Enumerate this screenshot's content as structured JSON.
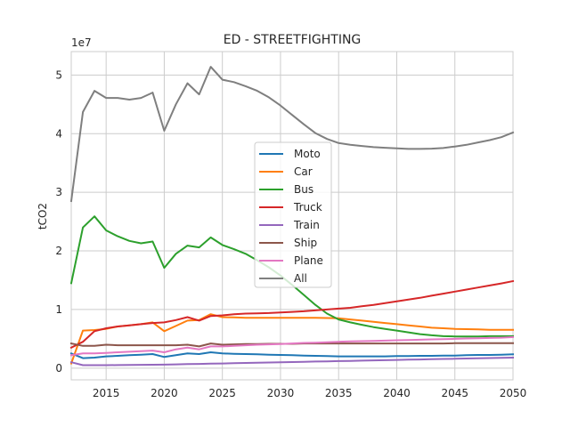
{
  "chart_data": {
    "type": "line",
    "title": "ED - STREETFIGHTING",
    "xlabel": "",
    "ylabel": "tCO2",
    "y_offset_text": "1e7",
    "xlim": [
      2012,
      2050
    ],
    "ylim": [
      -2000000,
      54000000
    ],
    "x_ticks": [
      2015,
      2020,
      2025,
      2030,
      2035,
      2040,
      2045,
      2050
    ],
    "y_ticks": [
      0,
      10000000,
      20000000,
      30000000,
      40000000,
      50000000
    ],
    "y_tick_labels": [
      "0",
      "1",
      "2",
      "3",
      "4",
      "5"
    ],
    "grid": true,
    "legend_placement": "center",
    "x": [
      2012,
      2013,
      2014,
      2015,
      2016,
      2017,
      2018,
      2019,
      2020,
      2021,
      2022,
      2023,
      2024,
      2025,
      2026,
      2027,
      2028,
      2029,
      2030,
      2031,
      2032,
      2033,
      2034,
      2035,
      2036,
      2037,
      2038,
      2039,
      2040,
      2041,
      2042,
      2043,
      2044,
      2045,
      2046,
      2047,
      2048,
      2049,
      2050
    ],
    "series": [
      {
        "name": "Moto",
        "color": "#1f77b4",
        "values": [
          2500000,
          1700000,
          1800000,
          2000000,
          2100000,
          2200000,
          2300000,
          2400000,
          1900000,
          2200000,
          2500000,
          2400000,
          2700000,
          2500000,
          2450000,
          2400000,
          2350000,
          2300000,
          2250000,
          2200000,
          2150000,
          2100000,
          2050000,
          2000000,
          2000000,
          2000000,
          2000000,
          2000000,
          2050000,
          2050000,
          2100000,
          2100000,
          2150000,
          2150000,
          2200000,
          2250000,
          2250000,
          2300000,
          2350000
        ]
      },
      {
        "name": "Car",
        "color": "#ff7f0e",
        "values": [
          800000,
          6400000,
          6500000,
          6700000,
          7100000,
          7300000,
          7500000,
          7800000,
          6300000,
          7200000,
          8100000,
          8200000,
          9200000,
          8700000,
          8650000,
          8600000,
          8600000,
          8600000,
          8600000,
          8600000,
          8600000,
          8600000,
          8550000,
          8500000,
          8300000,
          8100000,
          7900000,
          7700000,
          7500000,
          7300000,
          7100000,
          6900000,
          6800000,
          6700000,
          6650000,
          6600000,
          6550000,
          6550000,
          6550000
        ]
      },
      {
        "name": "Bus",
        "color": "#2ca02c",
        "values": [
          14500000,
          24000000,
          25900000,
          23500000,
          22500000,
          21700000,
          21300000,
          21600000,
          17100000,
          19500000,
          20900000,
          20600000,
          22300000,
          21000000,
          20300000,
          19500000,
          18400000,
          17200000,
          15800000,
          14200000,
          12500000,
          10800000,
          9300000,
          8300000,
          7800000,
          7400000,
          7000000,
          6700000,
          6400000,
          6100000,
          5800000,
          5600000,
          5450000,
          5400000,
          5400000,
          5400000,
          5450000,
          5450000,
          5450000
        ]
      },
      {
        "name": "Truck",
        "color": "#d62728",
        "values": [
          3500000,
          4500000,
          6300000,
          6800000,
          7100000,
          7300000,
          7500000,
          7700000,
          7800000,
          8200000,
          8700000,
          8100000,
          8900000,
          9000000,
          9200000,
          9300000,
          9350000,
          9400000,
          9500000,
          9600000,
          9700000,
          9850000,
          10000000,
          10150000,
          10300000,
          10550000,
          10800000,
          11100000,
          11400000,
          11700000,
          12000000,
          12350000,
          12700000,
          13050000,
          13400000,
          13750000,
          14100000,
          14450000,
          14850000
        ]
      },
      {
        "name": "Train",
        "color": "#9467bd",
        "values": [
          1000000,
          500000,
          500000,
          500000,
          520000,
          540000,
          560000,
          580000,
          600000,
          640000,
          680000,
          720000,
          760000,
          800000,
          840000,
          880000,
          920000,
          960000,
          1000000,
          1040000,
          1080000,
          1120000,
          1160000,
          1200000,
          1240000,
          1280000,
          1320000,
          1360000,
          1400000,
          1440000,
          1480000,
          1520000,
          1560000,
          1600000,
          1640000,
          1680000,
          1720000,
          1760000,
          1800000
        ]
      },
      {
        "name": "Ship",
        "color": "#8c564b",
        "values": [
          4200000,
          3800000,
          3800000,
          4000000,
          3900000,
          3900000,
          3900000,
          3900000,
          3900000,
          3900000,
          4000000,
          3700000,
          4200000,
          4000000,
          4050000,
          4100000,
          4100000,
          4150000,
          4150000,
          4150000,
          4200000,
          4200000,
          4200000,
          4200000,
          4200000,
          4200000,
          4200000,
          4200000,
          4200000,
          4200000,
          4200000,
          4200000,
          4200000,
          4250000,
          4250000,
          4250000,
          4250000,
          4250000,
          4250000
        ]
      },
      {
        "name": "Plane",
        "color": "#e377c2",
        "values": [
          2200000,
          2500000,
          2500000,
          2600000,
          2700000,
          2800000,
          2900000,
          3000000,
          2700000,
          3200000,
          3500000,
          3200000,
          3700000,
          3700000,
          3800000,
          3900000,
          4000000,
          4050000,
          4100000,
          4200000,
          4300000,
          4350000,
          4400000,
          4500000,
          4550000,
          4600000,
          4650000,
          4700000,
          4750000,
          4800000,
          4850000,
          4900000,
          4950000,
          5000000,
          5050000,
          5100000,
          5150000,
          5200000,
          5300000
        ]
      },
      {
        "name": "All",
        "color": "#7f7f7f",
        "values": [
          28500000,
          43700000,
          47300000,
          46100000,
          46100000,
          45800000,
          46100000,
          47000000,
          40500000,
          45000000,
          48600000,
          46700000,
          51400000,
          49200000,
          48800000,
          48100000,
          47300000,
          46200000,
          44800000,
          43200000,
          41600000,
          40100000,
          39100000,
          38400000,
          38100000,
          37900000,
          37700000,
          37600000,
          37500000,
          37400000,
          37400000,
          37450000,
          37550000,
          37800000,
          38100000,
          38500000,
          38900000,
          39400000,
          40200000
        ]
      }
    ]
  }
}
